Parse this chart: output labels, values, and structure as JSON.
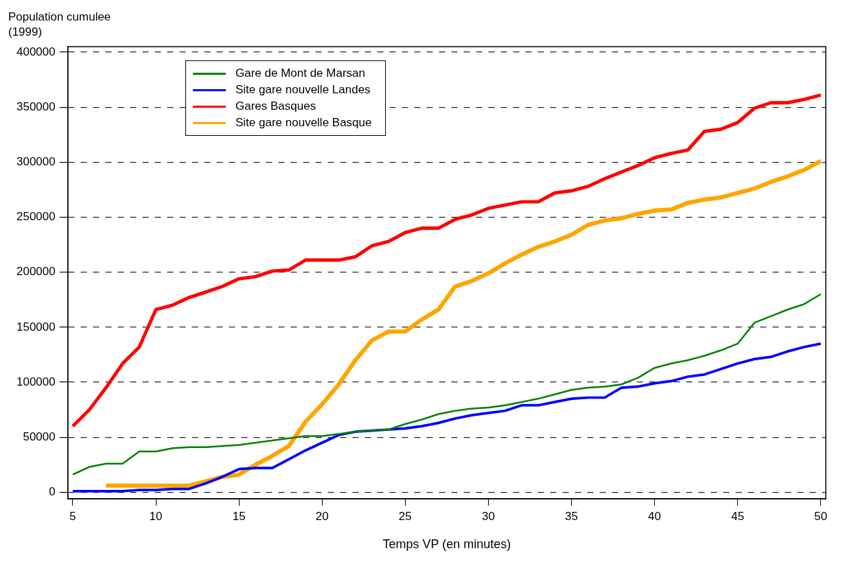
{
  "chart_data": {
    "type": "line",
    "ylabel": "Population cumulee (1999)",
    "xlabel": "Temps VP (en minutes)",
    "x": [
      5,
      6,
      7,
      8,
      9,
      10,
      11,
      12,
      13,
      14,
      15,
      16,
      17,
      18,
      19,
      20,
      21,
      22,
      23,
      24,
      25,
      26,
      27,
      28,
      29,
      30,
      31,
      32,
      33,
      34,
      35,
      36,
      37,
      38,
      39,
      40,
      41,
      42,
      43,
      44,
      45,
      46,
      47,
      48,
      49,
      50
    ],
    "series": [
      {
        "name": "Gare de Mont de Marsan",
        "color": "#008000",
        "values": [
          16000,
          23000,
          26000,
          26000,
          37000,
          37000,
          40000,
          41000,
          41000,
          42000,
          43000,
          45000,
          47000,
          49000,
          51000,
          51000,
          53000,
          55000,
          56000,
          57000,
          62000,
          66000,
          71000,
          74000,
          76000,
          77000,
          79000,
          82000,
          85000,
          89000,
          93000,
          95000,
          96000,
          98000,
          104000,
          113000,
          117000,
          120000,
          124000,
          129000,
          135000,
          154000,
          160000,
          166000,
          171000,
          180000
        ]
      },
      {
        "name": "Site gare nouvelle Landes",
        "color": "#0000ff",
        "values": [
          1000,
          1000,
          1000,
          1000,
          2000,
          2000,
          3000,
          3000,
          8000,
          14000,
          21000,
          22000,
          22000,
          30000,
          38000,
          45000,
          52000,
          55000,
          56000,
          57000,
          58000,
          60000,
          63000,
          67000,
          70000,
          72000,
          74000,
          79000,
          79000,
          82000,
          85000,
          86000,
          86000,
          95000,
          96000,
          99000,
          101000,
          105000,
          107000,
          112000,
          117000,
          121000,
          123000,
          128000,
          132000,
          135000
        ]
      },
      {
        "name": "Gares Basques",
        "color": "#ff0000",
        "values": [
          60000,
          75000,
          95000,
          117000,
          132000,
          166000,
          170000,
          177000,
          182000,
          187000,
          194000,
          196000,
          201000,
          202000,
          211000,
          211000,
          211000,
          214000,
          224000,
          228000,
          236000,
          240000,
          240000,
          248000,
          252000,
          258000,
          261000,
          264000,
          264000,
          272000,
          274000,
          278000,
          285000,
          291000,
          297000,
          304000,
          308000,
          311000,
          328000,
          330000,
          336000,
          349000,
          354000,
          354000,
          357000,
          361000
        ]
      },
      {
        "name": "Site gare nouvelle Basque",
        "color": "#ffa500",
        "values": [
          null,
          null,
          6000,
          6000,
          6000,
          6000,
          6000,
          6000,
          10000,
          14000,
          16000,
          25000,
          33000,
          42000,
          64000,
          80000,
          98000,
          120000,
          138000,
          146000,
          146000,
          157000,
          166000,
          187000,
          192000,
          199000,
          208000,
          216000,
          223000,
          228000,
          234000,
          243000,
          247000,
          249000,
          253000,
          256000,
          257000,
          263000,
          266000,
          268000,
          272000,
          276000,
          282000,
          287000,
          293000,
          301000
        ]
      }
    ],
    "xlim": [
      4.7,
      50.3
    ],
    "xticks": [
      5,
      10,
      15,
      20,
      25,
      30,
      35,
      40,
      45,
      50
    ],
    "ylim": [
      -6000,
      405000
    ],
    "yticks": [
      0,
      50000,
      100000,
      150000,
      200000,
      250000,
      300000,
      350000,
      400000
    ],
    "grid": "y",
    "legend": "top left",
    "line_style": "solid",
    "marker": "none"
  }
}
